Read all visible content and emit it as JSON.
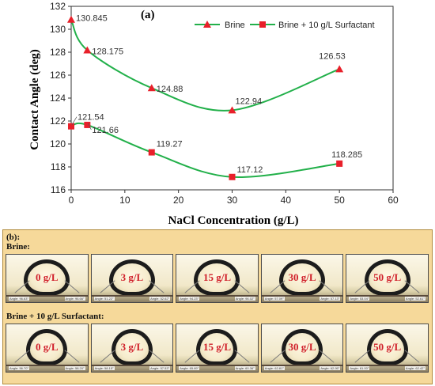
{
  "panel_a_label": "(a)",
  "panel_b": {
    "label": "(b):",
    "brine_header": "Brine:",
    "surf_header": "Brine + 10 g/L Surfactant:",
    "brine_photos": [
      {
        "conc": "0 g/L",
        "angle_left": "Angle: 96.63°",
        "angle_right": "Angle: 96.66°"
      },
      {
        "conc": "3 g/L",
        "angle_left": "Angle: 51.22°",
        "angle_right": "Angle: 52.62°"
      },
      {
        "conc": "15 g/L",
        "angle_left": "Angle: 94.23°",
        "angle_right": "Angle: 96.02°"
      },
      {
        "conc": "30 g/L",
        "angle_left": "Angle: 57.09°",
        "angle_right": "Angle: 57.13°"
      },
      {
        "conc": "50 g/L",
        "angle_left": "Angle: 53.04°",
        "angle_right": "Angle: 52.61°"
      }
    ],
    "surf_photos": [
      {
        "conc": "0 g/L",
        "angle_left": "Angle: 56.70°",
        "angle_right": "Angle: 58.20°"
      },
      {
        "conc": "3 g/L",
        "angle_left": "Angle: 58.15°",
        "angle_right": "Angle: 57.53°"
      },
      {
        "conc": "15 g/L",
        "angle_left": "Angle: 65.69°",
        "angle_right": "Angle: 60.36°"
      },
      {
        "conc": "30 g/L",
        "angle_left": "Angle: 62.81°",
        "angle_right": "Angle: 62.95°"
      },
      {
        "conc": "50 g/L",
        "angle_left": "Angle: 61.00°",
        "angle_right": "Angle: 62.42°"
      }
    ]
  },
  "chart_data": {
    "type": "line",
    "xlabel": "NaCl Concentration (g/L)",
    "ylabel": "Contact Angle (deg)",
    "xlim": [
      0,
      60
    ],
    "ylim": [
      116,
      132
    ],
    "xticks": [
      0,
      10,
      20,
      30,
      40,
      50,
      60
    ],
    "yticks": [
      116,
      118,
      120,
      122,
      124,
      126,
      128,
      130,
      132
    ],
    "grid": false,
    "legend_position": "top-right",
    "line_color": "#22b04a",
    "series": [
      {
        "name": "Brine",
        "marker": "triangle",
        "marker_color": "#e8202a",
        "x": [
          0,
          3,
          15,
          30,
          50
        ],
        "y": [
          130.845,
          128.175,
          124.88,
          122.94,
          126.53
        ],
        "labels": [
          "130.845",
          "128.175",
          "124.88",
          "122.94",
          "126.53"
        ]
      },
      {
        "name": "Brine + 10 g/L Surfactant",
        "marker": "square",
        "marker_color": "#e8202a",
        "x": [
          0,
          3,
          15,
          30,
          50
        ],
        "y": [
          121.54,
          121.66,
          119.27,
          117.12,
          118.285
        ],
        "labels": [
          "121.54",
          "121.66",
          "119.27",
          "117.12",
          "118.285"
        ]
      }
    ]
  }
}
